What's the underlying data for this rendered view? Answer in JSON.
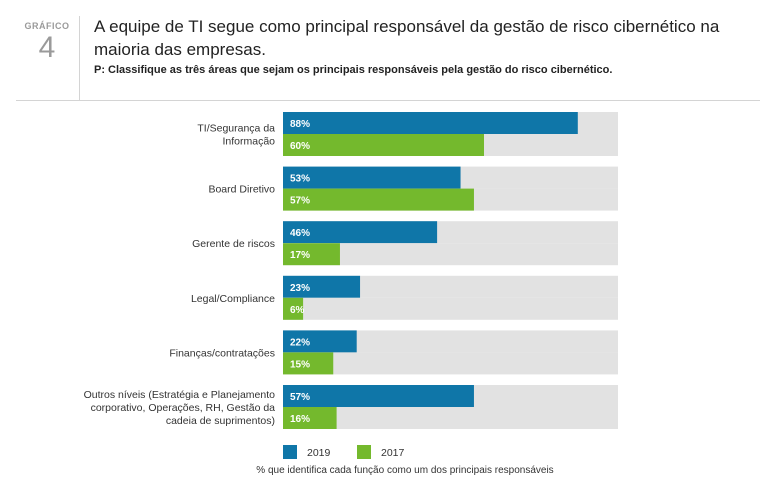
{
  "header": {
    "badge_label": "GRÁFICO",
    "badge_number": "4",
    "title": "A equipe de TI segue como principal responsável da gestão de risco cibernético na maioria das empresas.",
    "question": "P: Classifique as três áreas que sejam os principais responsáveis pela gestão do risco cibernético."
  },
  "chart_data": {
    "type": "bar",
    "orientation": "horizontal",
    "categories": [
      [
        "TI/Segurança da",
        "Informação"
      ],
      [
        "Board Diretivo"
      ],
      [
        "Gerente de riscos"
      ],
      [
        "Legal/Compliance"
      ],
      [
        "Finanças/contratações"
      ],
      [
        "Outros níveis (Estratégia e Planejamento",
        "corporativo, Operações, RH, Gestão da",
        "cadeia de suprimentos)"
      ]
    ],
    "series": [
      {
        "name": "2019",
        "color": "#0f76a8",
        "values": [
          88,
          53,
          46,
          23,
          22,
          57
        ],
        "labels": [
          "88%",
          "53%",
          "46%",
          "23%",
          "22%",
          "57%"
        ]
      },
      {
        "name": "2017",
        "color": "#74b92d",
        "values": [
          60,
          57,
          17,
          6,
          15,
          16
        ],
        "labels": [
          "60%",
          "57%",
          "17%",
          "6%",
          "15%",
          "16%"
        ]
      }
    ],
    "track_color": "#e2e2e2",
    "xlim": [
      0,
      100
    ],
    "legend_position": "bottom",
    "footnote": "% que identifica cada função como um dos principais responsáveis"
  }
}
